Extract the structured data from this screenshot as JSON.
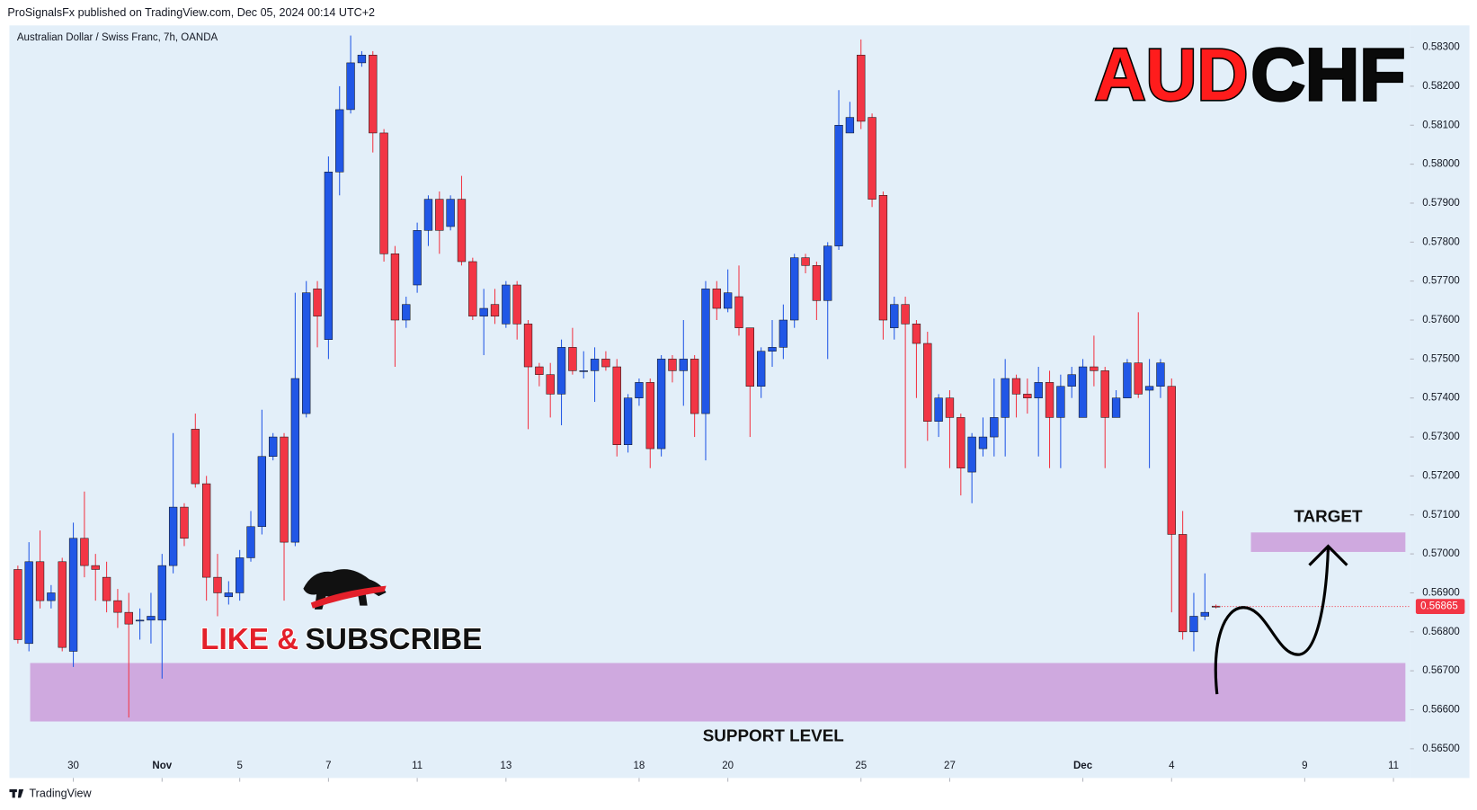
{
  "header": {
    "publisher": "ProSignalsFx published on TradingView.com, Dec 05, 2024 00:14 UTC+2",
    "footer": "TradingView"
  },
  "chart_data": {
    "type": "candlestick",
    "subtitle": "Australian Dollar / Swiss Franc, 7h, OANDA",
    "logo": [
      "AUD",
      "CHF"
    ],
    "banner": [
      "LIKE &",
      "SUBSCRIBE"
    ],
    "up_color": "#2157e6",
    "down_color": "#f23645",
    "zone_color": "#cfa9df",
    "open": [
      0.5696,
      0.5677,
      0.5698,
      0.5688,
      0.5698,
      0.5675,
      0.5704,
      0.5697,
      0.5694,
      0.5688,
      0.5685,
      0.5683,
      0.5683,
      0.5683,
      0.5697,
      0.5712,
      0.5732,
      0.5718,
      0.5694,
      0.5689,
      0.569,
      0.5699,
      0.5707,
      0.5725,
      0.573,
      0.5703,
      0.5736,
      0.5768,
      0.5755,
      0.5798,
      0.5814,
      0.5826,
      0.5828,
      0.5808,
      0.5777,
      0.576,
      0.5769,
      0.5783,
      0.5791,
      0.5784,
      0.5791,
      0.5775,
      0.5761,
      0.5764,
      0.5759,
      0.5769,
      0.5759,
      0.5748,
      0.5746,
      0.5741,
      0.5753,
      0.5747,
      0.5747,
      0.575,
      0.5748,
      0.5728,
      0.574,
      0.5744,
      0.5727,
      0.575,
      0.5747,
      0.575,
      0.5736,
      0.5768,
      0.5763,
      0.5766,
      0.5758,
      0.5743,
      0.5752,
      0.5753,
      0.576,
      0.5776,
      0.5774,
      0.5765,
      0.5779,
      0.5808,
      0.5828,
      0.5812,
      0.5792,
      0.5758,
      0.5764,
      0.5759,
      0.5754,
      0.5734,
      0.574,
      0.5735,
      0.5721,
      0.5727,
      0.573,
      0.5735,
      0.5745,
      0.5741,
      0.574,
      0.5744,
      0.5735,
      0.5743,
      0.5735,
      0.5748,
      0.5747,
      0.5735,
      0.574,
      0.5749,
      0.5742,
      0.5743,
      0.5743,
      0.5705,
      0.568,
      0.5684,
      0.56866
    ],
    "high": [
      0.5697,
      0.5703,
      0.5706,
      0.5692,
      0.5699,
      0.5708,
      0.5716,
      0.57,
      0.5698,
      0.5691,
      0.569,
      0.5686,
      0.569,
      0.57,
      0.5731,
      0.5713,
      0.5736,
      0.572,
      0.57,
      0.5693,
      0.5701,
      0.5711,
      0.5737,
      0.5731,
      0.5731,
      0.5767,
      0.577,
      0.577,
      0.5802,
      0.582,
      0.5833,
      0.5829,
      0.5829,
      0.5809,
      0.5779,
      0.5766,
      0.5785,
      0.5792,
      0.5793,
      0.5792,
      0.5797,
      0.5776,
      0.5768,
      0.5768,
      0.577,
      0.577,
      0.576,
      0.5749,
      0.5749,
      0.5755,
      0.5758,
      0.5752,
      0.5753,
      0.5752,
      0.575,
      0.5741,
      0.5745,
      0.5745,
      0.5751,
      0.5751,
      0.576,
      0.5751,
      0.577,
      0.577,
      0.5773,
      0.5774,
      0.5758,
      0.5753,
      0.576,
      0.5764,
      0.5777,
      0.5777,
      0.5775,
      0.578,
      0.5819,
      0.5816,
      0.5832,
      0.5813,
      0.5793,
      0.5766,
      0.5766,
      0.576,
      0.5757,
      0.5741,
      0.5742,
      0.5736,
      0.5731,
      0.5735,
      0.5745,
      0.575,
      0.5746,
      0.5745,
      0.5748,
      0.5747,
      0.5746,
      0.5748,
      0.575,
      0.5756,
      0.5748,
      0.5742,
      0.575,
      0.5762,
      0.575,
      0.575,
      0.5745,
      0.5711,
      0.569,
      0.5695,
      0.5687
    ],
    "low": [
      0.5677,
      0.5675,
      0.5686,
      0.5686,
      0.5675,
      0.5671,
      0.5694,
      0.5688,
      0.5685,
      0.5681,
      0.5658,
      0.5678,
      0.5677,
      0.5668,
      0.5695,
      0.5702,
      0.5717,
      0.5688,
      0.5684,
      0.5687,
      0.5688,
      0.5698,
      0.5705,
      0.5724,
      0.5688,
      0.5702,
      0.5735,
      0.5753,
      0.575,
      0.5792,
      0.5813,
      0.5825,
      0.5803,
      0.5775,
      0.5748,
      0.5758,
      0.5767,
      0.5779,
      0.5777,
      0.5783,
      0.5774,
      0.576,
      0.5751,
      0.5759,
      0.5758,
      0.5755,
      0.5732,
      0.5743,
      0.5735,
      0.5733,
      0.5746,
      0.5745,
      0.5739,
      0.5747,
      0.5725,
      0.5726,
      0.5738,
      0.5722,
      0.5725,
      0.5744,
      0.5738,
      0.573,
      0.5724,
      0.576,
      0.5762,
      0.5756,
      0.573,
      0.574,
      0.5748,
      0.575,
      0.5758,
      0.5772,
      0.576,
      0.575,
      0.5778,
      0.5808,
      0.5809,
      0.5789,
      0.5755,
      0.5755,
      0.5722,
      0.574,
      0.5729,
      0.573,
      0.5722,
      0.5715,
      0.5713,
      0.5725,
      0.5725,
      0.5725,
      0.5735,
      0.5736,
      0.5725,
      0.5722,
      0.5722,
      0.574,
      0.5735,
      0.5743,
      0.5722,
      0.5735,
      0.574,
      0.574,
      0.5722,
      0.574,
      0.5685,
      0.5678,
      0.5675,
      0.5683,
      0.5686
    ],
    "close": [
      0.5678,
      0.5698,
      0.5688,
      0.569,
      0.5676,
      0.5704,
      0.5697,
      0.5696,
      0.5688,
      0.5685,
      0.5682,
      0.5683,
      0.5684,
      0.5697,
      0.5712,
      0.5704,
      0.5718,
      0.5694,
      0.569,
      0.569,
      0.5699,
      0.5707,
      0.5725,
      0.573,
      0.5703,
      0.5745,
      0.5767,
      0.5761,
      0.5798,
      0.5814,
      0.5826,
      0.5828,
      0.5808,
      0.5777,
      0.576,
      0.5764,
      0.5783,
      0.5791,
      0.5783,
      0.5791,
      0.5775,
      0.5761,
      0.5763,
      0.5761,
      0.5769,
      0.5759,
      0.5748,
      0.5746,
      0.5741,
      0.5753,
      0.5747,
      0.5747,
      0.575,
      0.5748,
      0.5728,
      0.574,
      0.5744,
      0.5727,
      0.575,
      0.5747,
      0.575,
      0.5736,
      0.5768,
      0.5763,
      0.5767,
      0.5758,
      0.5743,
      0.5752,
      0.5753,
      0.576,
      0.5776,
      0.5774,
      0.5765,
      0.5779,
      0.581,
      0.5812,
      0.5811,
      0.5791,
      0.576,
      0.5764,
      0.5759,
      0.5754,
      0.5734,
      0.574,
      0.5735,
      0.5722,
      0.573,
      0.573,
      0.5735,
      0.5745,
      0.5741,
      0.574,
      0.5744,
      0.5735,
      0.5743,
      0.5746,
      0.5748,
      0.5747,
      0.5735,
      0.574,
      0.5749,
      0.5741,
      0.5743,
      0.5749,
      0.5705,
      0.568,
      0.5684,
      0.5685,
      0.56865
    ],
    "xlim": [
      -0.76,
      125.5
    ],
    "xticks": [
      {
        "value": 5,
        "label": "30"
      },
      {
        "value": 13,
        "label": "Nov"
      },
      {
        "value": 20,
        "label": "5"
      },
      {
        "value": 28,
        "label": "7"
      },
      {
        "value": 36,
        "label": "11"
      },
      {
        "value": 44,
        "label": "13"
      },
      {
        "value": 56,
        "label": "18"
      },
      {
        "value": 64,
        "label": "20"
      },
      {
        "value": 76,
        "label": "25"
      },
      {
        "value": 84,
        "label": "27"
      },
      {
        "value": 96,
        "label": "Dec"
      },
      {
        "value": 104,
        "label": "4"
      },
      {
        "value": 116,
        "label": "9"
      },
      {
        "value": 124,
        "label": "11"
      }
    ],
    "ylim": [
      0.56425,
      0.58356
    ],
    "yticks": [
      {
        "value": 0.565,
        "label": "0.56500"
      },
      {
        "value": 0.566,
        "label": "0.56600"
      },
      {
        "value": 0.567,
        "label": "0.56700"
      },
      {
        "value": 0.568,
        "label": "0.56800"
      },
      {
        "value": 0.569,
        "label": "0.56900"
      },
      {
        "value": 0.57,
        "label": "0.57000"
      },
      {
        "value": 0.571,
        "label": "0.57100"
      },
      {
        "value": 0.572,
        "label": "0.57200"
      },
      {
        "value": 0.573,
        "label": "0.57300"
      },
      {
        "value": 0.574,
        "label": "0.57400"
      },
      {
        "value": 0.575,
        "label": "0.57500"
      },
      {
        "value": 0.576,
        "label": "0.57600"
      },
      {
        "value": 0.577,
        "label": "0.57700"
      },
      {
        "value": 0.578,
        "label": "0.57800"
      },
      {
        "value": 0.579,
        "label": "0.57900"
      },
      {
        "value": 0.58,
        "label": "0.58000"
      },
      {
        "value": 0.581,
        "label": "0.58100"
      },
      {
        "value": 0.582,
        "label": "0.58200"
      },
      {
        "value": 0.583,
        "label": "0.58300"
      }
    ],
    "current_price": {
      "value": 0.56865,
      "label": "0.56865"
    },
    "zones": [
      {
        "label": "SUPPORT LEVEL",
        "low": 0.5657,
        "high": 0.5672
      },
      {
        "label": "TARGET",
        "low": 0.57005,
        "high": 0.57055
      }
    ]
  }
}
